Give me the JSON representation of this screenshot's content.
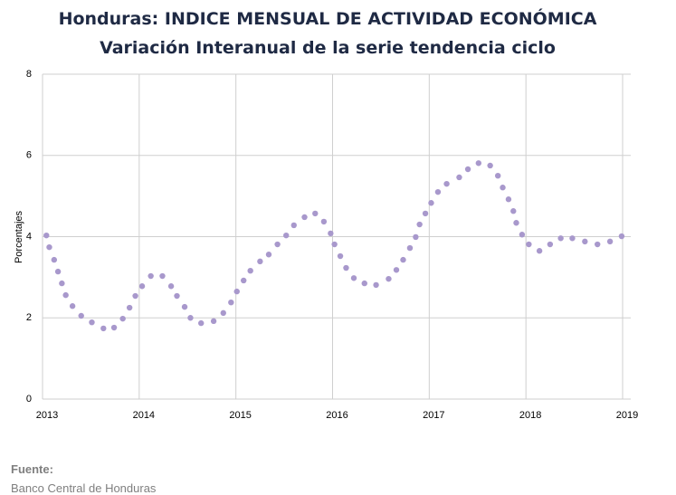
{
  "chart_data": {
    "type": "scatter",
    "title": "Honduras: INDICE MENSUAL DE ACTIVIDAD ECONÓMICA",
    "subtitle": "Variación Interanual de la serie tendencia ciclo",
    "y_label": "Porcentajes",
    "source_label": "Fuente:",
    "source": "Banco Central de Honduras",
    "color": "#a898cc",
    "grid": true,
    "xlim": [
      2013,
      2019
    ],
    "xticks": [
      2013,
      2014,
      2015,
      2016,
      2017,
      2018,
      2019
    ],
    "ylim": [
      0,
      8
    ],
    "yticks": [
      0,
      2,
      4,
      6,
      8
    ],
    "x": [
      2013.04,
      2013.07,
      2013.12,
      2013.16,
      2013.2,
      2013.24,
      2013.31,
      2013.4,
      2013.51,
      2013.63,
      2013.74,
      2013.83,
      2013.9,
      2013.96,
      2014.03,
      2014.12,
      2014.24,
      2014.33,
      2014.39,
      2014.47,
      2014.53,
      2014.64,
      2014.77,
      2014.87,
      2014.95,
      2015.01,
      2015.08,
      2015.15,
      2015.25,
      2015.34,
      2015.43,
      2015.52,
      2015.6,
      2015.71,
      2015.82,
      2015.91,
      2015.98,
      2016.02,
      2016.08,
      2016.14,
      2016.22,
      2016.33,
      2016.45,
      2016.58,
      2016.66,
      2016.73,
      2016.8,
      2016.86,
      2016.9,
      2016.96,
      2017.02,
      2017.09,
      2017.18,
      2017.31,
      2017.4,
      2017.51,
      2017.63,
      2017.71,
      2017.76,
      2017.82,
      2017.87,
      2017.9,
      2017.96,
      2018.03,
      2018.14,
      2018.25,
      2018.36,
      2018.48,
      2018.61,
      2018.74,
      2018.87,
      2018.99
    ],
    "values": [
      4.03,
      3.74,
      3.43,
      3.14,
      2.85,
      2.56,
      2.29,
      2.05,
      1.89,
      1.74,
      1.76,
      1.98,
      2.25,
      2.54,
      2.78,
      3.03,
      3.03,
      2.78,
      2.54,
      2.27,
      2.0,
      1.87,
      1.92,
      2.12,
      2.38,
      2.65,
      2.92,
      3.16,
      3.39,
      3.56,
      3.81,
      4.03,
      4.28,
      4.48,
      4.57,
      4.37,
      4.08,
      3.81,
      3.52,
      3.23,
      2.98,
      2.85,
      2.81,
      2.96,
      3.18,
      3.43,
      3.72,
      3.99,
      4.3,
      4.57,
      4.83,
      5.1,
      5.3,
      5.46,
      5.66,
      5.81,
      5.75,
      5.5,
      5.21,
      4.92,
      4.63,
      4.34,
      4.05,
      3.81,
      3.65,
      3.81,
      3.96,
      3.96,
      3.88,
      3.81,
      3.88,
      4.01
    ]
  }
}
